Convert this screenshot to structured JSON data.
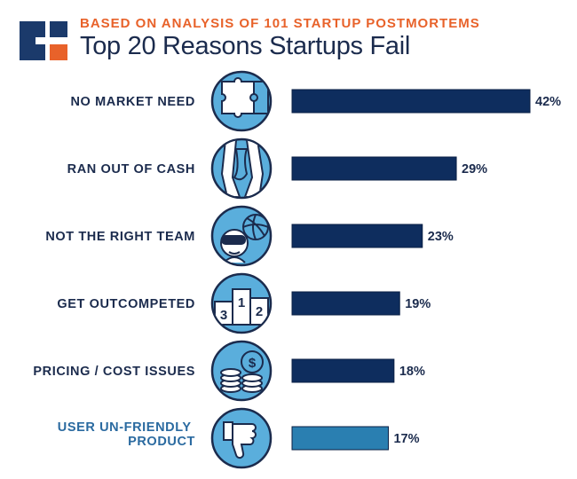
{
  "header": {
    "subtitle": "BASED ON ANALYSIS OF 101 STARTUP POSTMORTEMS",
    "title": "Top 20 Reasons Startups Fail"
  },
  "colors": {
    "navy": "#0e2d5e",
    "light_blue": "#2a7fb1",
    "icon_fill": "#5aaedc",
    "orange": "#e8622a",
    "label_text": "#1b2b4d"
  },
  "chart_data": {
    "type": "bar",
    "orientation": "horizontal",
    "title": "Top 20 Reasons Startups Fail",
    "subtitle": "BASED ON ANALYSIS OF 101 STARTUP POSTMORTEMS",
    "unit": "%",
    "xlim": [
      0,
      42
    ],
    "categories": [
      "NO MARKET NEED",
      "RAN OUT OF CASH",
      "NOT THE RIGHT TEAM",
      "GET OUTCOMPETED",
      "PRICING / COST ISSUES",
      "USER UN-FRIENDLY PRODUCT"
    ],
    "values": [
      42,
      29,
      23,
      19,
      18,
      17
    ],
    "value_labels": [
      "42%",
      "29%",
      "23%",
      "19%",
      "18%",
      "17%"
    ],
    "icons": [
      "puzzle-icon",
      "empty-pocket-icon",
      "vr-headset-icon",
      "podium-icon",
      "coins-dollar-icon",
      "thumbs-down-icon"
    ],
    "podium_numbers": [
      "3",
      "1",
      "2"
    ],
    "coin_symbol": "$"
  }
}
